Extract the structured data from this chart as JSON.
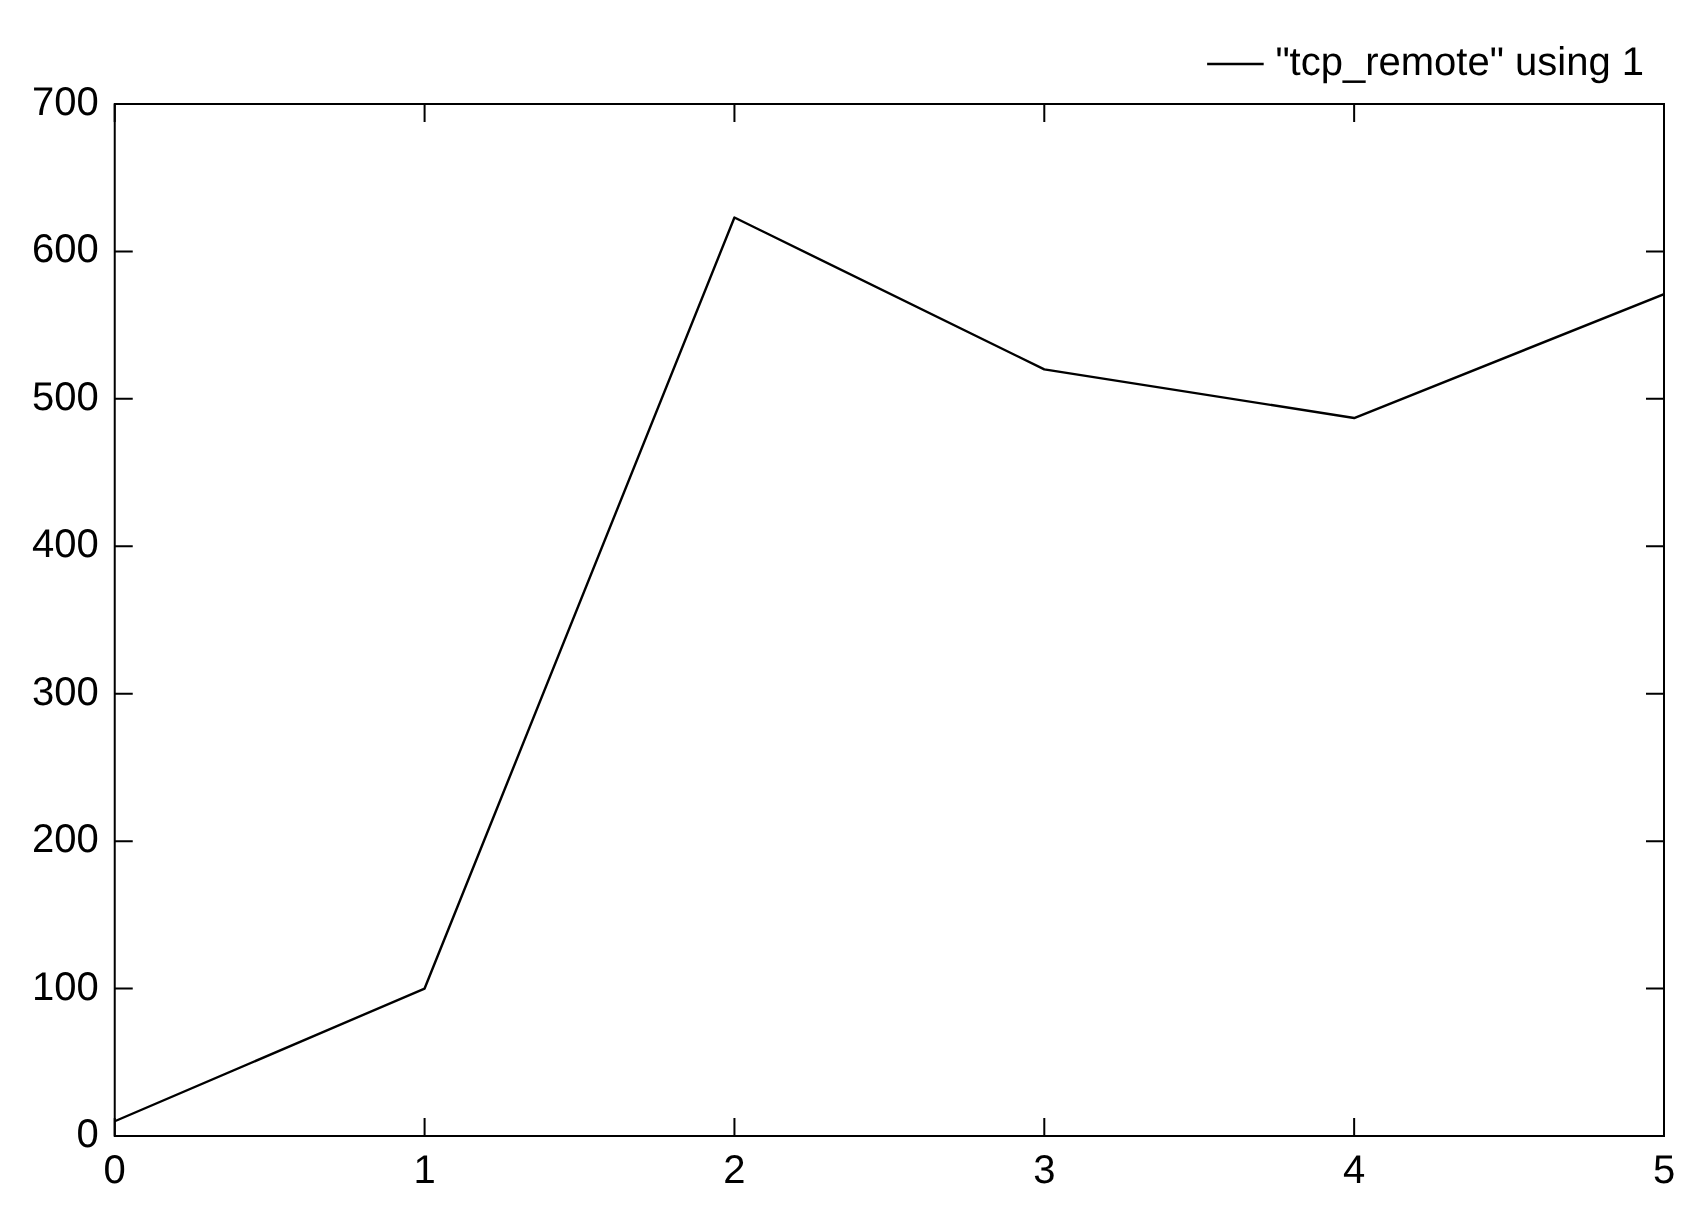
{
  "chart_data": {
    "type": "line",
    "x": [
      0,
      1,
      2,
      3,
      4,
      5
    ],
    "series": [
      {
        "name": "\"tcp_remote\" using 1",
        "color": "#000000",
        "values": [
          10,
          100,
          623,
          520,
          487,
          571
        ]
      }
    ],
    "xlim": [
      0,
      5
    ],
    "xticks": [
      0,
      1,
      2,
      3,
      4,
      5
    ],
    "ylim": [
      0,
      700
    ],
    "yticks": [
      0,
      100,
      200,
      300,
      400,
      500,
      600,
      700
    ],
    "grid": false,
    "legend": "top right",
    "marker": "none",
    "line_style": "solid"
  }
}
